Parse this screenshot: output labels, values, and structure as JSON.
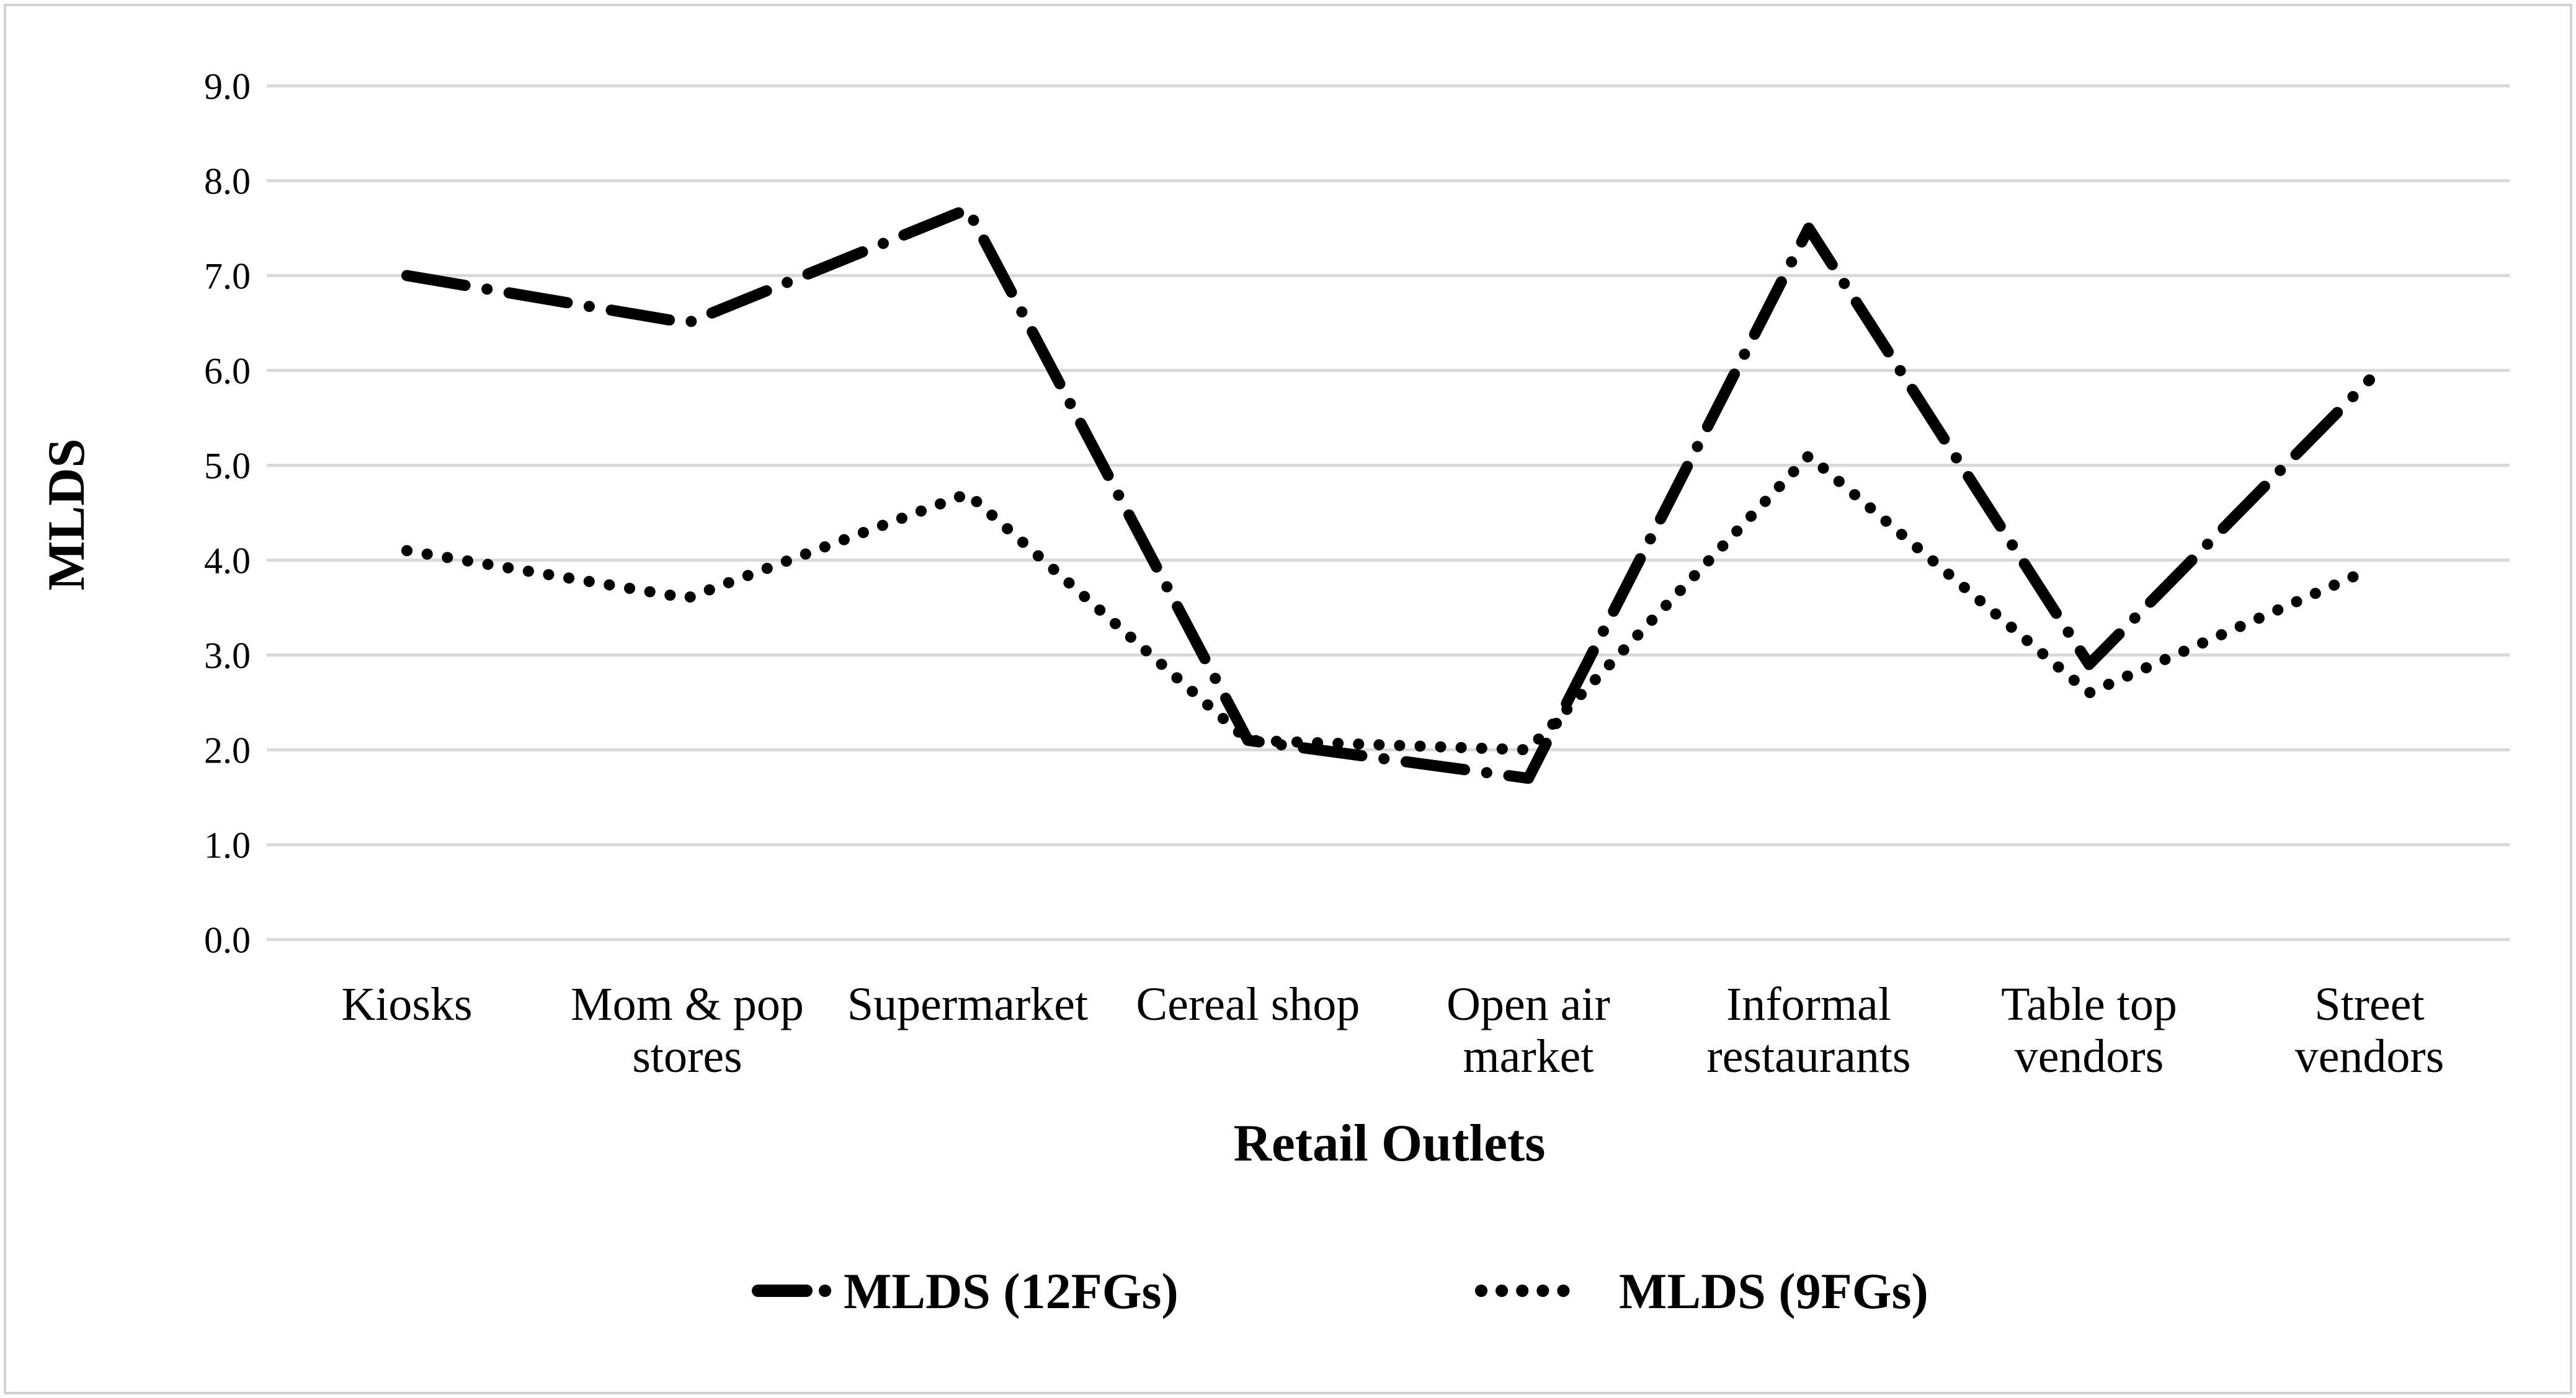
{
  "figure": {
    "background": "#ffffff",
    "border_color": "#d2d2d2",
    "grid_color": "#d9d9d9",
    "line_color": "#000000"
  },
  "chart_data": {
    "type": "line",
    "title": "",
    "xlabel": "Retail Outlets",
    "ylabel": "MLDS",
    "categories": [
      "Kiosks",
      "Mom & pop\nstores",
      "Supermarket",
      "Cereal shop",
      "Open air\nmarket",
      "Informal\nrestaurants",
      "Table top\nvendors",
      "Street\nvendors"
    ],
    "series": [
      {
        "name": "MLDS (12FGs)",
        "style": "dash-dot",
        "color": "#000000",
        "values": [
          7.0,
          6.5,
          7.7,
          2.1,
          1.7,
          7.5,
          2.9,
          5.9
        ]
      },
      {
        "name": "MLDS (9FGs)",
        "style": "dotted",
        "color": "#000000",
        "values": [
          4.1,
          3.6,
          4.7,
          2.1,
          2.0,
          5.1,
          2.6,
          3.9
        ]
      }
    ],
    "ylim": [
      0,
      9
    ],
    "ytick_step": 1,
    "ytick_labels": [
      "0.0",
      "1.0",
      "2.0",
      "3.0",
      "4.0",
      "5.0",
      "6.0",
      "7.0",
      "8.0",
      "9.0"
    ],
    "grid": true,
    "legend_position": "bottom"
  }
}
